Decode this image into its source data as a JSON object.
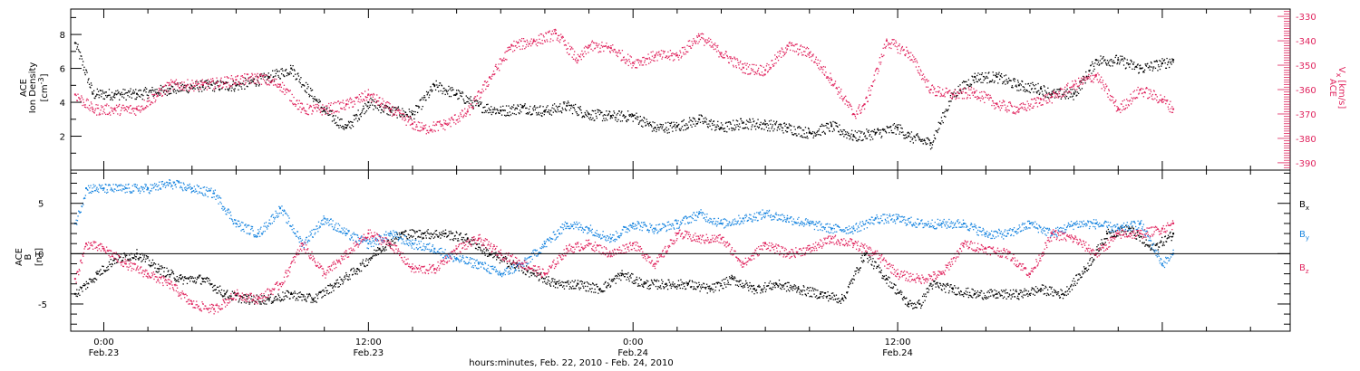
{
  "chart_data": [
    {
      "type": "scatter",
      "panel": "top",
      "ylabel_left_lines": [
        "ACE",
        "Ion Density"
      ],
      "ylabel_left_unit": "[cm",
      "ylabel_left_unit_sup": "-3",
      "ylabel_left_unit_end": "]",
      "yticks_left": [
        2,
        4,
        6,
        8
      ],
      "yticks_left_labels": [
        "2",
        "4",
        "6",
        "8"
      ],
      "ylim_left": [
        0,
        9.5
      ],
      "ylabel_right_line1": "ACE",
      "ylabel_right_line2": "V",
      "ylabel_right_sub": "x",
      "ylabel_right_unit": "[km/s]",
      "yticks_right": [
        -330,
        -340,
        -350,
        -360,
        -370,
        -380,
        -390
      ],
      "yticks_right_labels": [
        "-330",
        "-340",
        "-350",
        "-360",
        "-370",
        "-380",
        "-390"
      ],
      "ylim_right": [
        -393,
        -327
      ],
      "xlim_hours": [
        -1.5,
        53.8
      ],
      "series": [
        {
          "axis": "left",
          "color": "#000000",
          "t": [
            -1.3,
            -0.5,
            0.5,
            1.5,
            3,
            4.5,
            6,
            7.5,
            8.5,
            10,
            11,
            12,
            13,
            14,
            15,
            16,
            17,
            18,
            19,
            20,
            21,
            22,
            23,
            24,
            25,
            26,
            27,
            28,
            29,
            30,
            31,
            32,
            33,
            34,
            35,
            36,
            36.5,
            37,
            37.5,
            38.5,
            39.5,
            40.5,
            41.5,
            42.5,
            43,
            44,
            45,
            46,
            47,
            48,
            48.5
          ],
          "v": [
            7.5,
            4.5,
            4.5,
            4.5,
            4.8,
            5,
            5,
            5.5,
            6,
            3.5,
            2.5,
            4,
            3.5,
            3.3,
            5,
            4.5,
            3.8,
            3.5,
            3.7,
            3.5,
            3.8,
            3.3,
            3.2,
            3.2,
            2.5,
            2.6,
            3,
            2.5,
            2.8,
            2.7,
            2.5,
            2.2,
            2.6,
            2,
            2.2,
            2.5,
            2,
            1.8,
            1.6,
            4.5,
            5.5,
            5.5,
            5,
            4.8,
            4.5,
            4.5,
            6.5,
            6.5,
            6,
            6.3,
            6.5
          ]
        },
        {
          "axis": "right",
          "color": "#e0245e",
          "t": [
            -1.3,
            -0.5,
            0.5,
            1.5,
            3,
            4.5,
            6,
            7,
            8,
            9,
            10,
            11,
            12,
            13,
            14,
            14.5,
            15.5,
            16.5,
            17.5,
            18.5,
            19.5,
            20.5,
            21.5,
            22,
            23,
            24,
            25,
            26,
            27,
            28,
            29,
            30,
            31,
            32,
            33,
            34,
            34.5,
            35.5,
            36.5,
            37.5,
            38.5,
            39.5,
            40.5,
            41.5,
            42.5,
            43,
            44,
            45,
            46,
            47,
            48,
            48.5
          ],
          "v": [
            -362,
            -368,
            -368,
            -368,
            -358,
            -358,
            -356,
            -355,
            -358,
            -368,
            -368,
            -366,
            -362,
            -368,
            -374,
            -376,
            -374,
            -369,
            -355,
            -342,
            -340,
            -337,
            -348,
            -342,
            -343,
            -349,
            -346,
            -346,
            -338,
            -345,
            -351,
            -352,
            -342,
            -345,
            -356,
            -370,
            -366,
            -340,
            -345,
            -360,
            -362,
            -361,
            -366,
            -368,
            -364,
            -363,
            -358,
            -354,
            -368,
            -360,
            -364,
            -368
          ]
        }
      ]
    },
    {
      "type": "scatter",
      "panel": "bottom",
      "ylabel_lines": [
        "ACE",
        "B"
      ],
      "ylabel_unit": "[nT]",
      "yticks": [
        -5,
        0,
        5
      ],
      "yticks_labels": [
        "-5",
        "0",
        "5"
      ],
      "ylim": [
        -7.7,
        8.3
      ],
      "zero_line": true,
      "xlim_hours": [
        -1.5,
        53.8
      ],
      "series": [
        {
          "name": "B",
          "sub": "x",
          "color": "#000000",
          "t": [
            -1.3,
            -0.3,
            0.5,
            1.5,
            2.5,
            3.5,
            4.5,
            5.5,
            6.5,
            7.5,
            8.5,
            9.5,
            10.5,
            11.5,
            12.5,
            13.5,
            14.5,
            15.5,
            16.5,
            17.5,
            18.5,
            19.5,
            20.5,
            21.5,
            22.5,
            23.5,
            24.5,
            25.5,
            26.5,
            27.5,
            28.5,
            29.5,
            30.5,
            31.5,
            32.5,
            33.5,
            34.5,
            35.5,
            36.5,
            37,
            37.5,
            38.5,
            39.5,
            40.5,
            41.5,
            42.5,
            43.5,
            44.5,
            45.5,
            46.5,
            47.5,
            48.5
          ],
          "v": [
            -4,
            -2,
            -0.5,
            0,
            -1.5,
            -2.5,
            -2.5,
            -4,
            -4.5,
            -4.5,
            -4,
            -4.5,
            -3,
            -1.5,
            0.5,
            2,
            2,
            2,
            1.5,
            0,
            -1,
            -2,
            -3,
            -3,
            -3.5,
            -2,
            -3,
            -3,
            -3,
            -3.5,
            -2.5,
            -3.5,
            -3,
            -3.5,
            -4,
            -4.5,
            0,
            -2.5,
            -5,
            -5,
            -3,
            -3.5,
            -4,
            -4,
            -4,
            -3.5,
            -4,
            -1.5,
            2,
            2.5,
            0.5,
            2
          ]
        },
        {
          "name": "B",
          "sub": "y",
          "color": "#1a86e0",
          "t": [
            -1.3,
            -0.8,
            0,
            1,
            2,
            3,
            4,
            5,
            6,
            7,
            8,
            9,
            10,
            11,
            12,
            13,
            14,
            15,
            16,
            17,
            18,
            19,
            20,
            21,
            22,
            23,
            24,
            25,
            26,
            27,
            28,
            29,
            30,
            31,
            32,
            33,
            34,
            35,
            36,
            37,
            38,
            39,
            40,
            41,
            42,
            43,
            44,
            45,
            46,
            47,
            48,
            48.5
          ],
          "v": [
            3,
            6.5,
            6.5,
            6.5,
            6.5,
            7,
            6.5,
            6,
            3,
            2,
            4.5,
            1,
            3.5,
            2,
            1,
            2,
            1,
            0.5,
            -0.5,
            -1,
            -2,
            -1,
            1,
            3,
            2.5,
            1.5,
            3,
            2.5,
            3,
            4,
            3,
            3.5,
            4,
            3.5,
            3,
            2.5,
            2.5,
            3.5,
            3.5,
            3,
            3,
            3,
            2,
            2,
            3,
            2,
            3,
            3,
            2.5,
            3,
            -1,
            0
          ]
        },
        {
          "name": "B",
          "sub": "z",
          "color": "#e0245e",
          "t": [
            -1.3,
            -0.8,
            0,
            1,
            2,
            3,
            4,
            5,
            6,
            7,
            8,
            9,
            10,
            11,
            12,
            13,
            14,
            15,
            16,
            17,
            18,
            19,
            20,
            21,
            22,
            23,
            24,
            25,
            26,
            27,
            28,
            29,
            30,
            31,
            32,
            33,
            34,
            35,
            36,
            37,
            38,
            39,
            40,
            41,
            42,
            43,
            44,
            45,
            46,
            47,
            48,
            48.5
          ],
          "v": [
            -2.5,
            1,
            0.5,
            -1,
            -2,
            -3,
            -5,
            -5.5,
            -4,
            -4.5,
            -3,
            1,
            -2,
            0,
            2,
            1,
            -1.5,
            -1.5,
            0.5,
            1.5,
            0,
            -1,
            -2,
            0.5,
            1,
            0,
            1,
            -1,
            2,
            1.5,
            1.5,
            -1,
            1,
            0,
            0.5,
            1.5,
            1,
            0,
            -2,
            -2.5,
            -2,
            1,
            0.5,
            0,
            -2,
            2,
            1.5,
            0,
            2,
            2,
            2.5,
            3
          ]
        }
      ]
    }
  ],
  "xaxis": {
    "ticks": [
      {
        "t": 0,
        "line1": "0:00",
        "line2": "Feb.23"
      },
      {
        "t": 12,
        "line1": "12:00",
        "line2": "Feb.23"
      },
      {
        "t": 24,
        "line1": "0:00",
        "line2": "Feb.24"
      },
      {
        "t": 36,
        "line1": "12:00",
        "line2": "Feb.24"
      }
    ],
    "minor_step_hours": 2,
    "label": "hours:minutes, Feb. 22, 2010 - Feb. 24, 2010"
  },
  "legend": {
    "placement": "right",
    "items": [
      {
        "name": "B",
        "sub": "x"
      },
      {
        "name": "B",
        "sub": "y"
      },
      {
        "name": "B",
        "sub": "z"
      }
    ]
  },
  "colors": {
    "density": "#000000",
    "vx": "#e0245e",
    "bx": "#000000",
    "by": "#1a86e0",
    "bz": "#e0245e"
  }
}
